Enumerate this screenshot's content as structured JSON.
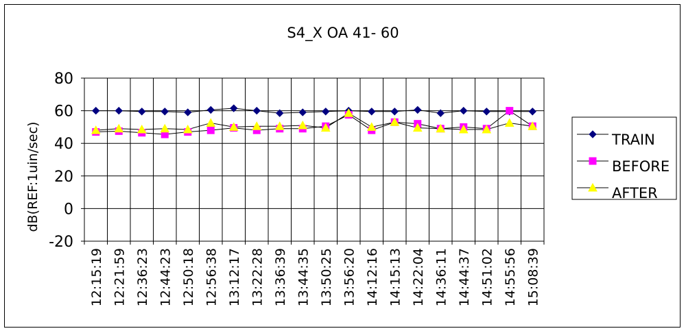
{
  "chart_data": {
    "type": "line",
    "title": "S4_X OA 41- 60",
    "xlabel": "",
    "ylabel": "dB(REF:1uin/sec)",
    "ylim": [
      -20,
      80
    ],
    "yticks": [
      80,
      60,
      40,
      20,
      0,
      -20
    ],
    "grid": true,
    "legend_position": "right",
    "categories": [
      "12:15:19",
      "12:21:59",
      "12:36:23",
      "12:44:23",
      "12:50:18",
      "12:56:38",
      "13:12:17",
      "13:22:28",
      "13:36:39",
      "13:44:35",
      "13:50:25",
      "13:56:20",
      "14:12:16",
      "14:15:13",
      "14:22:04",
      "14:36:11",
      "14:44:37",
      "14:51:02",
      "14:55:56",
      "15:08:39"
    ],
    "series": [
      {
        "name": "TRAIN",
        "color": "#000080",
        "marker": "diamond",
        "values": [
          60,
          60,
          59.5,
          59.5,
          59,
          60.5,
          61.5,
          60,
          58.5,
          59,
          59.5,
          60,
          59.5,
          59.5,
          60.5,
          58.5,
          60,
          59.5,
          59.5,
          59.5
        ]
      },
      {
        "name": "BEFORE",
        "color": "#ff00ff",
        "marker": "square",
        "values": [
          47,
          47.5,
          46.5,
          45.5,
          47,
          48,
          49.5,
          48,
          49,
          49,
          50.5,
          57.5,
          48,
          53,
          52,
          49,
          50,
          49,
          60,
          50.5
        ]
      },
      {
        "name": "AFTER",
        "color": "#ffff00",
        "marker": "triangle",
        "values": [
          48,
          49,
          48.5,
          49,
          48.5,
          52.5,
          50,
          50.5,
          50.5,
          51,
          49.5,
          58.5,
          50,
          53,
          49.5,
          49,
          48.5,
          48.5,
          52.5,
          50.5
        ]
      }
    ]
  }
}
